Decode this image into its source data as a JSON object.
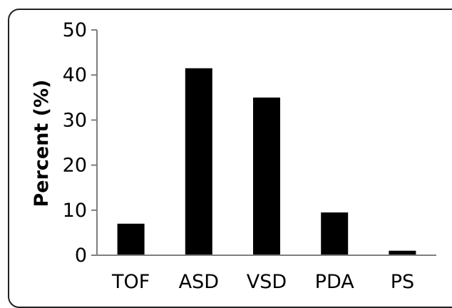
{
  "chart_data": {
    "type": "bar",
    "categories": [
      "TOF",
      "ASD",
      "VSD",
      "PDA",
      "PS"
    ],
    "values": [
      7,
      41.5,
      35,
      9.5,
      1
    ],
    "title": "",
    "xlabel": "",
    "ylabel": "Percent (%)",
    "ylim": [
      0,
      50
    ],
    "yticks": [
      0,
      10,
      20,
      30,
      40,
      50
    ],
    "grid": false,
    "legend": "none",
    "bar_color": "#000000"
  }
}
